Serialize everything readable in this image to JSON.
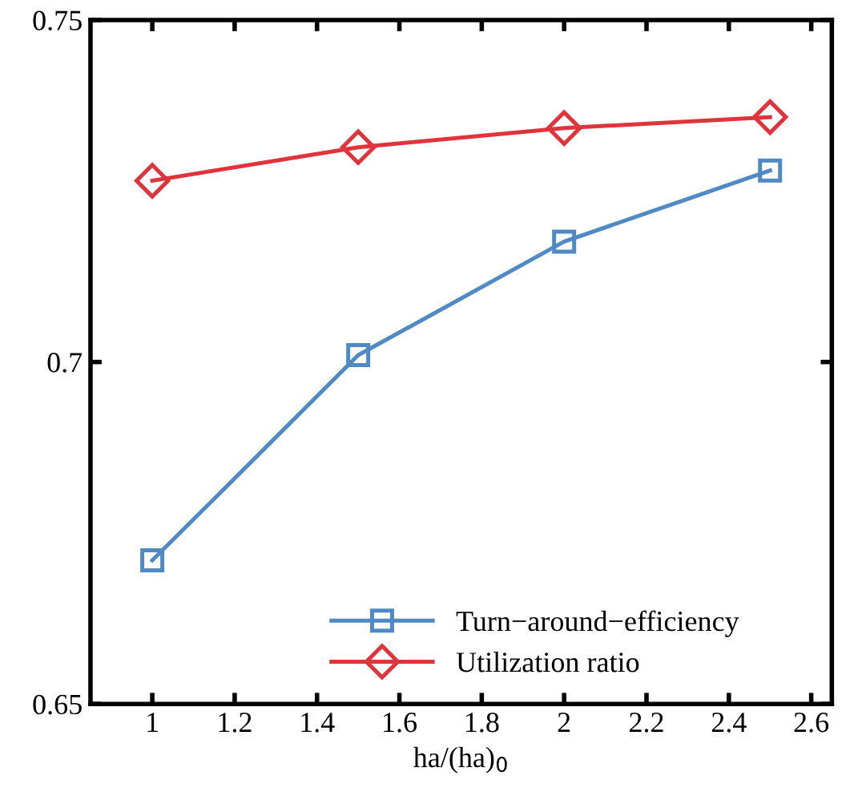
{
  "chart_data": {
    "type": "line",
    "xlabel": "ha/(ha)$_{0}$",
    "x": [
      1,
      1.5,
      2,
      2.5
    ],
    "series": [
      {
        "name": "Turn−around−efficiency",
        "color": "#4f8ac4",
        "marker": "square",
        "values": [
          0.671,
          0.701,
          0.7176,
          0.728
        ]
      },
      {
        "name": "Utilization ratio",
        "color": "#e0343c",
        "marker": "diamond",
        "values": [
          0.7265,
          0.7314,
          0.7342,
          0.7358
        ]
      }
    ],
    "xlim": [
      0.85,
      2.65
    ],
    "xticks": [
      1,
      1.2,
      1.4,
      1.6,
      1.8,
      2,
      2.2,
      2.4,
      2.6
    ],
    "ylim": [
      0.65,
      0.75
    ],
    "yticks": [
      0.65,
      0.7,
      0.75
    ],
    "grid": false,
    "legend": "bottom"
  }
}
